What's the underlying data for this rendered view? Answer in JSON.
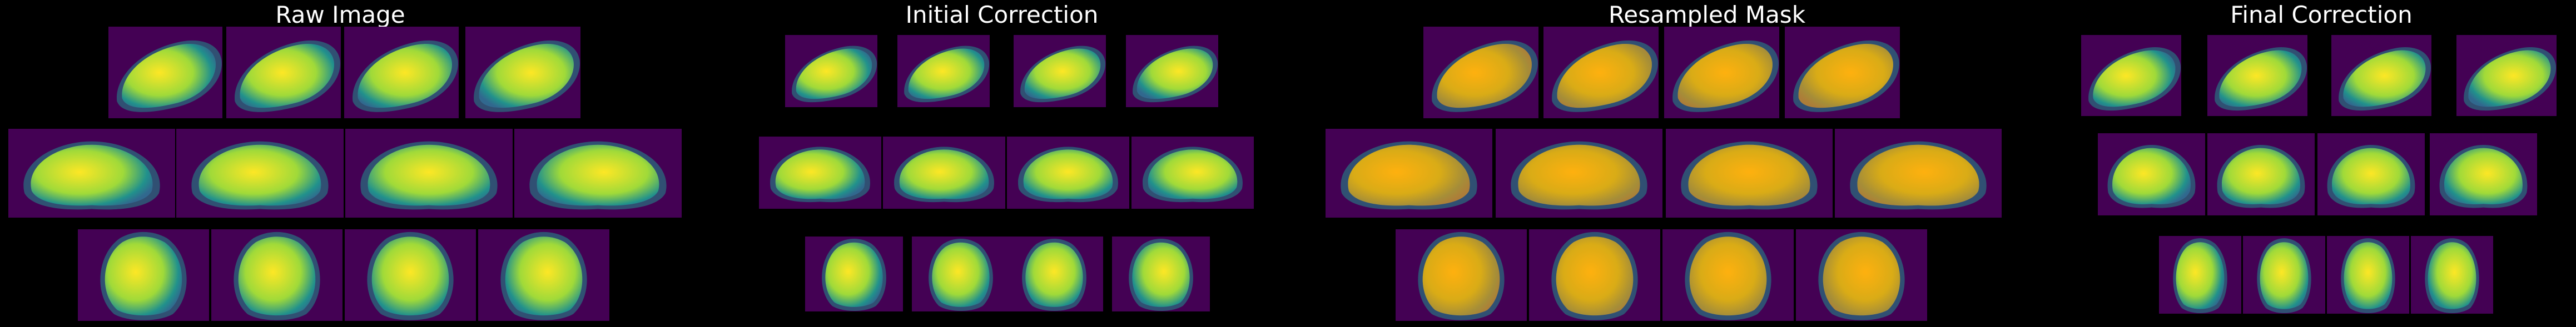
{
  "panels": [
    {
      "title": "Raw Image",
      "overlay": false
    },
    {
      "title": "Initial Correction",
      "overlay": false
    },
    {
      "title": "Resampled Mask",
      "overlay": true
    },
    {
      "title": "Final Correction",
      "overlay": false
    }
  ],
  "colors": {
    "background": "#000000",
    "title_text": "#ffffff",
    "viridis_low": "#440154",
    "viridis_mid": "#21918c",
    "viridis_high": "#fde725",
    "mask_overlay": "#ff8c00"
  }
}
